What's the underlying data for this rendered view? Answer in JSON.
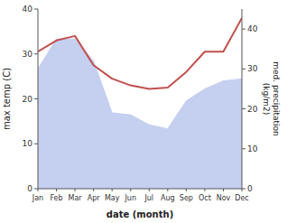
{
  "chart_data": {
    "type": "line",
    "xlabel": "date (month)",
    "ylabel": "max temp (C)",
    "y2label": "med. precipitation\n(kg/m2)",
    "categories": [
      "Jan",
      "Feb",
      "Mar",
      "Apr",
      "May",
      "Jun",
      "Jul",
      "Aug",
      "Sep",
      "Oct",
      "Nov",
      "Dec"
    ],
    "series": [
      {
        "type": "area",
        "axis": "y2",
        "color": "#c5cff0",
        "values": [
          30.0,
          37.5,
          37.5,
          32.0,
          19.0,
          18.5,
          16.0,
          15.0,
          22.0,
          25.0,
          27.0,
          27.5
        ]
      },
      {
        "type": "line",
        "color": "#c0504d",
        "values": [
          30.5,
          33.0,
          34.0,
          27.5,
          24.5,
          23.0,
          22.2,
          22.5,
          26.0,
          30.5,
          30.5,
          38.0
        ]
      }
    ],
    "ylim": [
      0,
      40
    ],
    "yticks": [
      0,
      10,
      20,
      30,
      40
    ],
    "y2lim": [
      0,
      45
    ],
    "y2ticks": [
      0,
      10,
      20,
      30,
      40
    ],
    "grid": false
  }
}
